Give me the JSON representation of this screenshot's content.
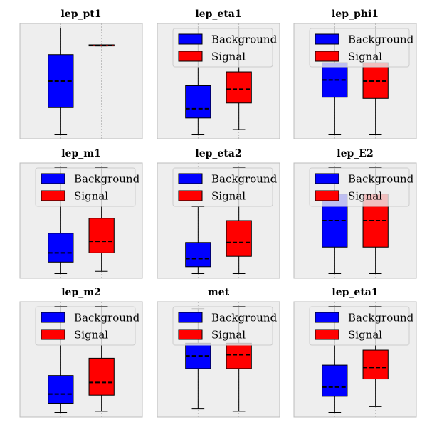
{
  "chart_data": [
    {
      "type": "box",
      "title": "lep_pt1",
      "xlabel": "",
      "ylabel": "",
      "legend": null,
      "grid": true,
      "ylim": [
        0,
        1
      ],
      "series": [
        {
          "color": "#0000ff",
          "whisker_low": 0.04,
          "q1": 0.27,
          "median": 0.5,
          "q3": 0.73,
          "whisker_high": 0.96
        },
        {
          "color": "#ff0000",
          "whisker_low": 0.805,
          "q1": 0.805,
          "median": 0.81,
          "q3": 0.815,
          "whisker_high": 0.815
        }
      ]
    },
    {
      "type": "box",
      "title": "lep_eta1",
      "xlabel": "",
      "ylabel": "",
      "legend": {
        "placement": "top",
        "entries": [
          {
            "label": "Background",
            "color": "#0000ff"
          },
          {
            "label": "Signal",
            "color": "#ff0000"
          }
        ]
      },
      "grid": true,
      "ylim": [
        0,
        1
      ],
      "series": [
        {
          "color": "#0000ff",
          "whisker_low": 0.04,
          "q1": 0.18,
          "median": 0.26,
          "q3": 0.46,
          "whisker_high": 0.96
        },
        {
          "color": "#ff0000",
          "whisker_low": 0.08,
          "q1": 0.31,
          "median": 0.43,
          "q3": 0.58,
          "whisker_high": 0.96
        }
      ]
    },
    {
      "type": "box",
      "title": "lep_phi1",
      "xlabel": "",
      "ylabel": "",
      "legend": {
        "placement": "top",
        "entries": [
          {
            "label": "Background",
            "color": "#0000ff"
          },
          {
            "label": "Signal",
            "color": "#ff0000"
          }
        ]
      },
      "grid": true,
      "ylim": [
        0,
        1
      ],
      "series": [
        {
          "color": "#0000ff",
          "whisker_low": 0.04,
          "q1": 0.36,
          "median": 0.51,
          "q3": 0.66,
          "whisker_high": 0.96
        },
        {
          "color": "#ff0000",
          "whisker_low": 0.04,
          "q1": 0.35,
          "median": 0.5,
          "q3": 0.66,
          "whisker_high": 0.96
        }
      ]
    },
    {
      "type": "box",
      "title": "lep_m1",
      "xlabel": "",
      "ylabel": "",
      "legend": {
        "placement": "top",
        "entries": [
          {
            "label": "Background",
            "color": "#0000ff"
          },
          {
            "label": "Signal",
            "color": "#ff0000"
          }
        ]
      },
      "grid": true,
      "ylim": [
        0,
        1
      ],
      "series": [
        {
          "color": "#0000ff",
          "whisker_low": 0.04,
          "q1": 0.14,
          "median": 0.22,
          "q3": 0.39,
          "whisker_high": 0.96
        },
        {
          "color": "#ff0000",
          "whisker_low": 0.06,
          "q1": 0.22,
          "median": 0.32,
          "q3": 0.52,
          "whisker_high": 0.96
        }
      ]
    },
    {
      "type": "box",
      "title": "lep_eta2",
      "xlabel": "",
      "ylabel": "",
      "legend": {
        "placement": "top",
        "entries": [
          {
            "label": "Background",
            "color": "#0000ff"
          },
          {
            "label": "Signal",
            "color": "#ff0000"
          }
        ]
      },
      "grid": true,
      "ylim": [
        0,
        1
      ],
      "series": [
        {
          "color": "#0000ff",
          "whisker_low": 0.04,
          "q1": 0.1,
          "median": 0.17,
          "q3": 0.31,
          "whisker_high": 0.62
        },
        {
          "color": "#ff0000",
          "whisker_low": 0.04,
          "q1": 0.19,
          "median": 0.31,
          "q3": 0.5,
          "whisker_high": 0.96
        }
      ]
    },
    {
      "type": "box",
      "title": "lep_E2",
      "xlabel": "",
      "ylabel": "",
      "legend": {
        "placement": "top",
        "entries": [
          {
            "label": "Background",
            "color": "#0000ff"
          },
          {
            "label": "Signal",
            "color": "#ff0000"
          }
        ]
      },
      "grid": true,
      "ylim": [
        0,
        1
      ],
      "series": [
        {
          "color": "#0000ff",
          "whisker_low": 0.04,
          "q1": 0.27,
          "median": 0.5,
          "q3": 0.73,
          "whisker_high": 0.96
        },
        {
          "color": "#ff0000",
          "whisker_low": 0.04,
          "q1": 0.27,
          "median": 0.5,
          "q3": 0.73,
          "whisker_high": 0.96
        }
      ]
    },
    {
      "type": "box",
      "title": "lep_m2",
      "xlabel": "",
      "ylabel": "",
      "legend": {
        "placement": "top",
        "entries": [
          {
            "label": "Background",
            "color": "#0000ff"
          },
          {
            "label": "Signal",
            "color": "#ff0000"
          }
        ]
      },
      "grid": true,
      "ylim": [
        0,
        1
      ],
      "series": [
        {
          "color": "#0000ff",
          "whisker_low": 0.04,
          "q1": 0.12,
          "median": 0.2,
          "q3": 0.36,
          "whisker_high": 0.96
        },
        {
          "color": "#ff0000",
          "whisker_low": 0.05,
          "q1": 0.19,
          "median": 0.3,
          "q3": 0.51,
          "whisker_high": 0.96
        }
      ]
    },
    {
      "type": "box",
      "title": "met",
      "xlabel": "",
      "ylabel": "",
      "legend": {
        "placement": "top",
        "entries": [
          {
            "label": "Background",
            "color": "#0000ff"
          },
          {
            "label": "Signal",
            "color": "#ff0000"
          }
        ]
      },
      "grid": true,
      "ylim": [
        0,
        1
      ],
      "series": [
        {
          "color": "#0000ff",
          "whisker_low": 0.07,
          "q1": 0.42,
          "median": 0.53,
          "q3": 0.64,
          "whisker_high": 0.94
        },
        {
          "color": "#ff0000",
          "whisker_low": 0.05,
          "q1": 0.42,
          "median": 0.54,
          "q3": 0.64,
          "whisker_high": 0.96
        }
      ]
    },
    {
      "type": "box",
      "title": "lep_eta1",
      "xlabel": "",
      "ylabel": "",
      "legend": {
        "placement": "top",
        "entries": [
          {
            "label": "Background",
            "color": "#0000ff"
          },
          {
            "label": "Signal",
            "color": "#ff0000"
          }
        ]
      },
      "grid": true,
      "ylim": [
        0,
        1
      ],
      "series": [
        {
          "color": "#0000ff",
          "whisker_low": 0.04,
          "q1": 0.18,
          "median": 0.26,
          "q3": 0.45,
          "whisker_high": 0.96
        },
        {
          "color": "#ff0000",
          "whisker_low": 0.09,
          "q1": 0.33,
          "median": 0.43,
          "q3": 0.58,
          "whisker_high": 0.96
        }
      ]
    }
  ]
}
